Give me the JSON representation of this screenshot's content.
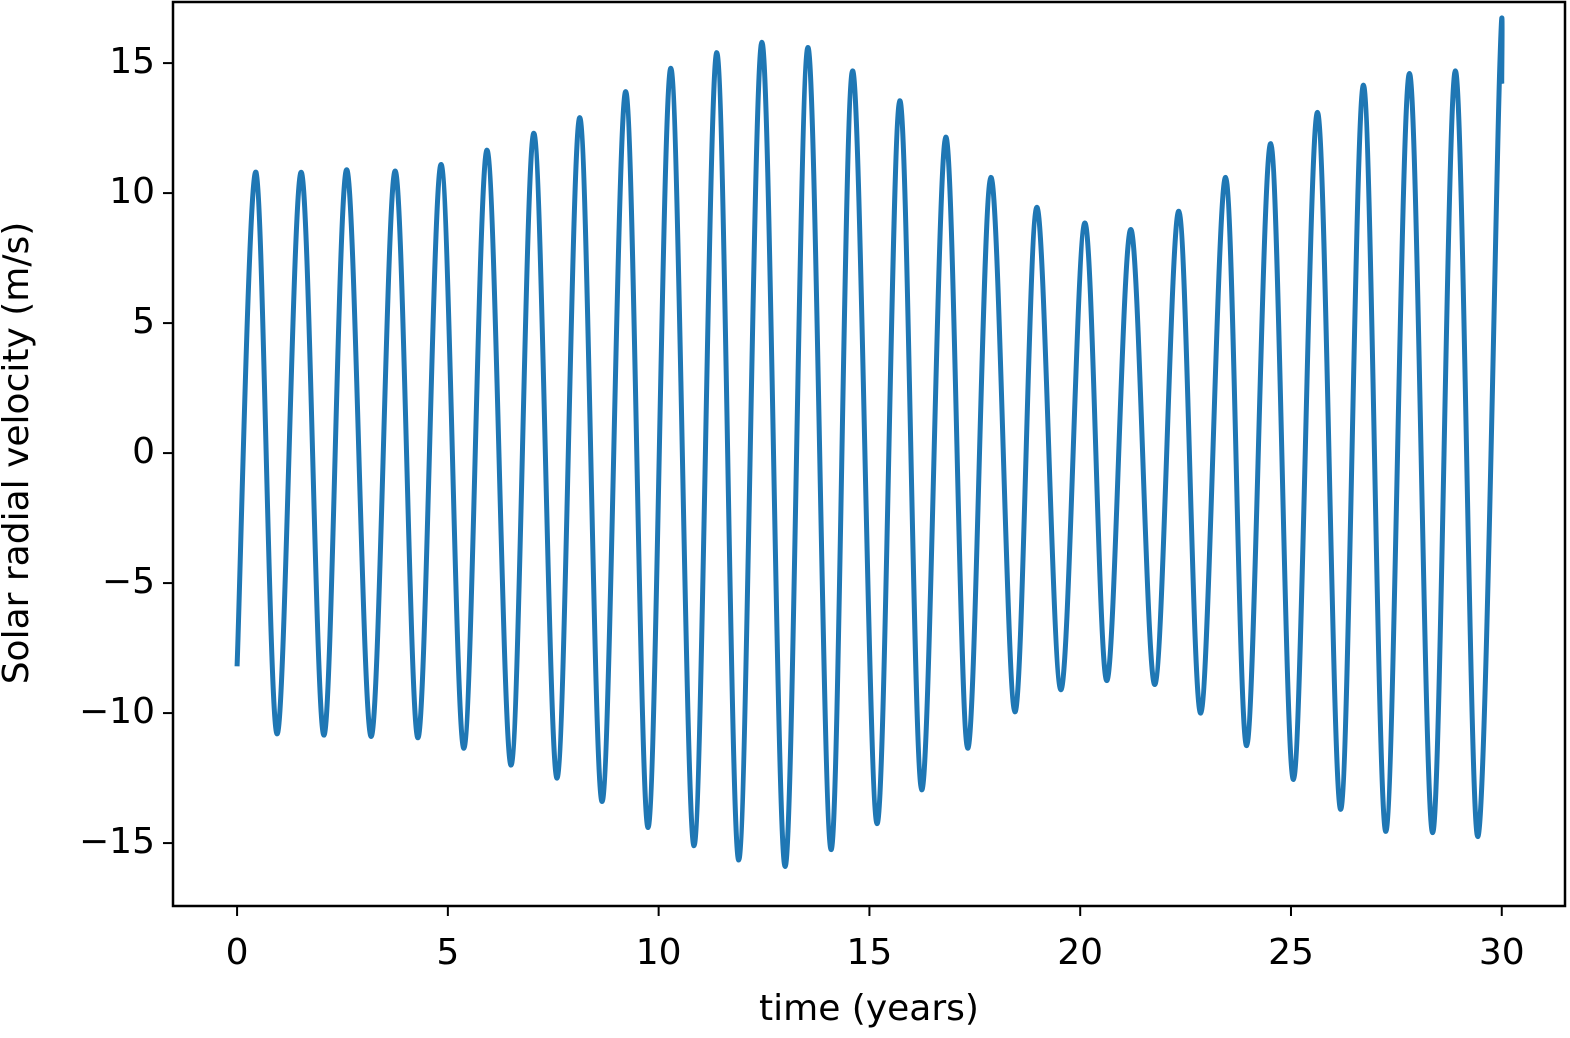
{
  "chart_data": {
    "type": "line",
    "x_label": "time (years)",
    "y_label": "Solar radial velocity (m/s)",
    "series": [
      {
        "color": "#1f77b4",
        "x": [
          0,
          0.45,
          0.95,
          1.52,
          2.06,
          2.6,
          3.18,
          3.75,
          4.29,
          4.84,
          5.38,
          5.93,
          6.5,
          7.04,
          7.59,
          8.13,
          8.66,
          9.22,
          9.75,
          10.29,
          10.84,
          11.38,
          11.9,
          12.45,
          13.0,
          13.54,
          14.09,
          14.6,
          15.18,
          15.72,
          16.24,
          16.81,
          17.33,
          17.88,
          18.45,
          18.97,
          19.54,
          20.11,
          20.63,
          21.2,
          21.77,
          22.34,
          22.86,
          23.45,
          23.95,
          24.52,
          25.06,
          25.63,
          26.18,
          26.72,
          27.25,
          27.81,
          28.36,
          28.9,
          29.43,
          29.95,
          30.0
        ],
        "values": [
          -8.2,
          10.8,
          -10.8,
          10.8,
          -10.85,
          10.9,
          -10.9,
          10.85,
          -10.95,
          11.1,
          -11.35,
          11.65,
          -12.0,
          12.3,
          -12.5,
          12.9,
          -13.4,
          13.9,
          -14.4,
          14.8,
          -15.1,
          15.4,
          -15.65,
          15.8,
          -15.9,
          15.6,
          -15.25,
          14.7,
          -14.25,
          13.55,
          -12.95,
          12.15,
          -11.35,
          10.6,
          -9.95,
          9.45,
          -9.1,
          8.85,
          -8.75,
          8.6,
          -8.9,
          9.3,
          -10.0,
          10.6,
          -11.25,
          11.9,
          -12.55,
          13.1,
          -13.7,
          14.15,
          -14.55,
          14.6,
          -14.6,
          14.7,
          -14.75,
          14.7,
          14.2
        ]
      }
    ],
    "xlim": [
      -1.52,
      31.5
    ],
    "ylim": [
      -17.42,
      17.35
    ],
    "xticks": [
      0,
      5,
      10,
      15,
      20,
      25,
      30
    ],
    "yticks": [
      {
        "value": -15,
        "label": "−15"
      },
      {
        "value": -10,
        "label": "−10"
      },
      {
        "value": -5,
        "label": "−5"
      },
      0,
      5,
      10,
      15
    ]
  }
}
